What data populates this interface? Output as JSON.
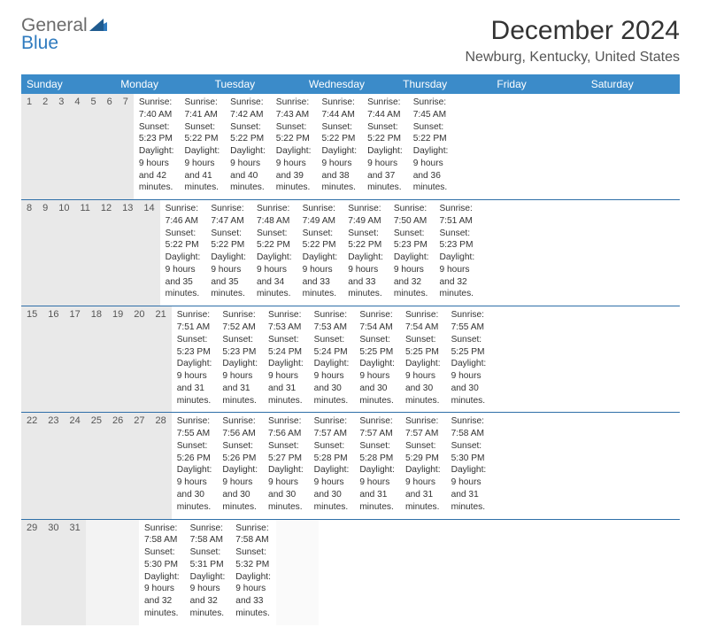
{
  "brand": {
    "line1": "General",
    "line2": "Blue"
  },
  "title": "December 2024",
  "location": "Newburg, Kentucky, United States",
  "colors": {
    "header_bg": "#3b8bc9",
    "header_text": "#ffffff",
    "daynum_bg": "#e9e9e9",
    "week_divider": "#2f6fa8",
    "logo_gray": "#6b6b6b",
    "logo_blue": "#2f7bbf",
    "text": "#333333"
  },
  "weekdays": [
    "Sunday",
    "Monday",
    "Tuesday",
    "Wednesday",
    "Thursday",
    "Friday",
    "Saturday"
  ],
  "weeks": [
    {
      "days": [
        {
          "num": "1",
          "sunrise": "Sunrise: 7:40 AM",
          "sunset": "Sunset: 5:23 PM",
          "daylight": "Daylight: 9 hours and 42 minutes."
        },
        {
          "num": "2",
          "sunrise": "Sunrise: 7:41 AM",
          "sunset": "Sunset: 5:22 PM",
          "daylight": "Daylight: 9 hours and 41 minutes."
        },
        {
          "num": "3",
          "sunrise": "Sunrise: 7:42 AM",
          "sunset": "Sunset: 5:22 PM",
          "daylight": "Daylight: 9 hours and 40 minutes."
        },
        {
          "num": "4",
          "sunrise": "Sunrise: 7:43 AM",
          "sunset": "Sunset: 5:22 PM",
          "daylight": "Daylight: 9 hours and 39 minutes."
        },
        {
          "num": "5",
          "sunrise": "Sunrise: 7:44 AM",
          "sunset": "Sunset: 5:22 PM",
          "daylight": "Daylight: 9 hours and 38 minutes."
        },
        {
          "num": "6",
          "sunrise": "Sunrise: 7:44 AM",
          "sunset": "Sunset: 5:22 PM",
          "daylight": "Daylight: 9 hours and 37 minutes."
        },
        {
          "num": "7",
          "sunrise": "Sunrise: 7:45 AM",
          "sunset": "Sunset: 5:22 PM",
          "daylight": "Daylight: 9 hours and 36 minutes."
        }
      ]
    },
    {
      "days": [
        {
          "num": "8",
          "sunrise": "Sunrise: 7:46 AM",
          "sunset": "Sunset: 5:22 PM",
          "daylight": "Daylight: 9 hours and 35 minutes."
        },
        {
          "num": "9",
          "sunrise": "Sunrise: 7:47 AM",
          "sunset": "Sunset: 5:22 PM",
          "daylight": "Daylight: 9 hours and 35 minutes."
        },
        {
          "num": "10",
          "sunrise": "Sunrise: 7:48 AM",
          "sunset": "Sunset: 5:22 PM",
          "daylight": "Daylight: 9 hours and 34 minutes."
        },
        {
          "num": "11",
          "sunrise": "Sunrise: 7:49 AM",
          "sunset": "Sunset: 5:22 PM",
          "daylight": "Daylight: 9 hours and 33 minutes."
        },
        {
          "num": "12",
          "sunrise": "Sunrise: 7:49 AM",
          "sunset": "Sunset: 5:22 PM",
          "daylight": "Daylight: 9 hours and 33 minutes."
        },
        {
          "num": "13",
          "sunrise": "Sunrise: 7:50 AM",
          "sunset": "Sunset: 5:23 PM",
          "daylight": "Daylight: 9 hours and 32 minutes."
        },
        {
          "num": "14",
          "sunrise": "Sunrise: 7:51 AM",
          "sunset": "Sunset: 5:23 PM",
          "daylight": "Daylight: 9 hours and 32 minutes."
        }
      ]
    },
    {
      "days": [
        {
          "num": "15",
          "sunrise": "Sunrise: 7:51 AM",
          "sunset": "Sunset: 5:23 PM",
          "daylight": "Daylight: 9 hours and 31 minutes."
        },
        {
          "num": "16",
          "sunrise": "Sunrise: 7:52 AM",
          "sunset": "Sunset: 5:23 PM",
          "daylight": "Daylight: 9 hours and 31 minutes."
        },
        {
          "num": "17",
          "sunrise": "Sunrise: 7:53 AM",
          "sunset": "Sunset: 5:24 PM",
          "daylight": "Daylight: 9 hours and 31 minutes."
        },
        {
          "num": "18",
          "sunrise": "Sunrise: 7:53 AM",
          "sunset": "Sunset: 5:24 PM",
          "daylight": "Daylight: 9 hours and 30 minutes."
        },
        {
          "num": "19",
          "sunrise": "Sunrise: 7:54 AM",
          "sunset": "Sunset: 5:25 PM",
          "daylight": "Daylight: 9 hours and 30 minutes."
        },
        {
          "num": "20",
          "sunrise": "Sunrise: 7:54 AM",
          "sunset": "Sunset: 5:25 PM",
          "daylight": "Daylight: 9 hours and 30 minutes."
        },
        {
          "num": "21",
          "sunrise": "Sunrise: 7:55 AM",
          "sunset": "Sunset: 5:25 PM",
          "daylight": "Daylight: 9 hours and 30 minutes."
        }
      ]
    },
    {
      "days": [
        {
          "num": "22",
          "sunrise": "Sunrise: 7:55 AM",
          "sunset": "Sunset: 5:26 PM",
          "daylight": "Daylight: 9 hours and 30 minutes."
        },
        {
          "num": "23",
          "sunrise": "Sunrise: 7:56 AM",
          "sunset": "Sunset: 5:26 PM",
          "daylight": "Daylight: 9 hours and 30 minutes."
        },
        {
          "num": "24",
          "sunrise": "Sunrise: 7:56 AM",
          "sunset": "Sunset: 5:27 PM",
          "daylight": "Daylight: 9 hours and 30 minutes."
        },
        {
          "num": "25",
          "sunrise": "Sunrise: 7:57 AM",
          "sunset": "Sunset: 5:28 PM",
          "daylight": "Daylight: 9 hours and 30 minutes."
        },
        {
          "num": "26",
          "sunrise": "Sunrise: 7:57 AM",
          "sunset": "Sunset: 5:28 PM",
          "daylight": "Daylight: 9 hours and 31 minutes."
        },
        {
          "num": "27",
          "sunrise": "Sunrise: 7:57 AM",
          "sunset": "Sunset: 5:29 PM",
          "daylight": "Daylight: 9 hours and 31 minutes."
        },
        {
          "num": "28",
          "sunrise": "Sunrise: 7:58 AM",
          "sunset": "Sunset: 5:30 PM",
          "daylight": "Daylight: 9 hours and 31 minutes."
        }
      ]
    },
    {
      "days": [
        {
          "num": "29",
          "sunrise": "Sunrise: 7:58 AM",
          "sunset": "Sunset: 5:30 PM",
          "daylight": "Daylight: 9 hours and 32 minutes."
        },
        {
          "num": "30",
          "sunrise": "Sunrise: 7:58 AM",
          "sunset": "Sunset: 5:31 PM",
          "daylight": "Daylight: 9 hours and 32 minutes."
        },
        {
          "num": "31",
          "sunrise": "Sunrise: 7:58 AM",
          "sunset": "Sunset: 5:32 PM",
          "daylight": "Daylight: 9 hours and 33 minutes."
        },
        {
          "empty": true
        },
        {
          "empty": true
        },
        {
          "empty": true
        },
        {
          "empty": true
        }
      ]
    }
  ]
}
